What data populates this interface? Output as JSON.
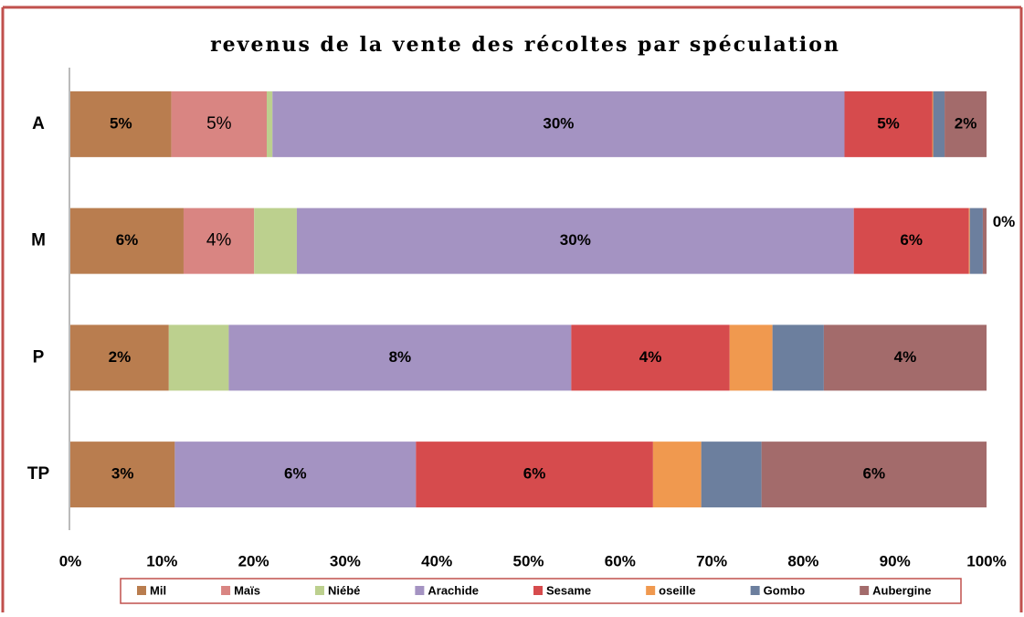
{
  "chart_data": {
    "type": "bar",
    "orientation": "horizontal",
    "stacked": "percent",
    "title": "revenus de la vente des récoltes par spéculation",
    "categories": [
      "A",
      "M",
      "P",
      "TP"
    ],
    "xlim": [
      0,
      100
    ],
    "xticks": [
      {
        "value": 0,
        "label": "0%"
      },
      {
        "value": 10,
        "label": "10%"
      },
      {
        "value": 20,
        "label": "20%"
      },
      {
        "value": 30,
        "label": "30%"
      },
      {
        "value": 40,
        "label": "40%"
      },
      {
        "value": 50,
        "label": "50%"
      },
      {
        "value": 60,
        "label": "60%"
      },
      {
        "value": 70,
        "label": "70%"
      },
      {
        "value": 80,
        "label": "80%"
      },
      {
        "value": 90,
        "label": "90%"
      },
      {
        "value": 100,
        "label": "100%"
      }
    ],
    "legend": "bottom",
    "series": [
      {
        "name": "Mil",
        "color": "#b97d4f",
        "values": [
          5.3,
          6.1,
          2.3,
          2.6
        ],
        "value_labels": [
          "5%",
          "6%",
          "2%",
          "3%"
        ]
      },
      {
        "name": "Maïs",
        "color": "#d98582",
        "values": [
          5.0,
          3.8,
          0,
          0
        ],
        "value_labels": [
          "5%",
          "4%",
          null,
          null
        ]
      },
      {
        "name": "Niébé",
        "color": "#bcd08e",
        "values": [
          0.3,
          2.3,
          1.4,
          0
        ],
        "value_labels": [
          null,
          null,
          null,
          null
        ]
      },
      {
        "name": "Arachide",
        "color": "#a493c2",
        "values": [
          30,
          30,
          8,
          6
        ],
        "value_labels": [
          "30%",
          "30%",
          "8%",
          "6%"
        ]
      },
      {
        "name": "Sesame",
        "color": "#d64b4d",
        "values": [
          4.6,
          6.2,
          3.7,
          5.9
        ],
        "value_labels": [
          "5%",
          "6%",
          "4%",
          "6%"
        ]
      },
      {
        "name": "oseille",
        "color": "#f0994f",
        "values": [
          0.05,
          0.05,
          1.0,
          1.2
        ],
        "value_labels": [
          null,
          null,
          null,
          null
        ]
      },
      {
        "name": "Gombo",
        "color": "#6c7f9e",
        "values": [
          0.6,
          0.7,
          1.2,
          1.5
        ],
        "value_labels": [
          null,
          null,
          null,
          null
        ]
      },
      {
        "name": "Aubergine",
        "color": "#a36b6b",
        "values": [
          2.2,
          0.2,
          3.8,
          5.6
        ],
        "value_labels": [
          "2%",
          "0%",
          "4%",
          "6%"
        ]
      }
    ]
  }
}
